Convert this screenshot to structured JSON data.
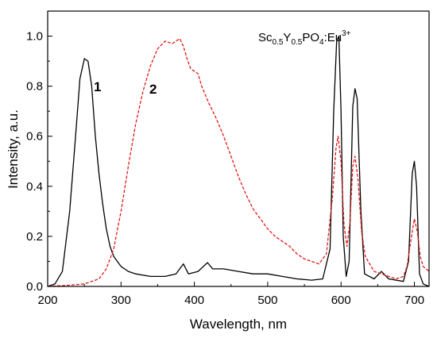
{
  "chart_data": {
    "type": "line",
    "xlabel": "Wavelength, nm",
    "ylabel": "Intensity, a.u.",
    "xlim": [
      200,
      720
    ],
    "ylim": [
      0,
      1.1
    ],
    "x_ticks": [
      "200",
      "300",
      "400",
      "500",
      "600",
      "700"
    ],
    "y_ticks": [
      "0.0",
      "0.2",
      "0.4",
      "0.6",
      "0.8",
      "1.0"
    ],
    "grid": false,
    "legend": "none",
    "annotation": {
      "base": "Sc",
      "s1": "0.5",
      "mid": "Y",
      "s2": "0.5",
      "tail": "PO",
      "s3": "4",
      "end": ":Eu",
      "sup": "3+"
    },
    "series": [
      {
        "label": "1",
        "color": "#000000",
        "style": "solid",
        "points": [
          [
            200,
            0.0
          ],
          [
            210,
            0.01
          ],
          [
            220,
            0.06
          ],
          [
            230,
            0.3
          ],
          [
            238,
            0.6
          ],
          [
            244,
            0.83
          ],
          [
            250,
            0.91
          ],
          [
            255,
            0.9
          ],
          [
            260,
            0.8
          ],
          [
            265,
            0.6
          ],
          [
            270,
            0.45
          ],
          [
            275,
            0.33
          ],
          [
            280,
            0.23
          ],
          [
            285,
            0.16
          ],
          [
            290,
            0.12
          ],
          [
            300,
            0.08
          ],
          [
            310,
            0.06
          ],
          [
            320,
            0.05
          ],
          [
            340,
            0.04
          ],
          [
            360,
            0.04
          ],
          [
            375,
            0.05
          ],
          [
            385,
            0.09
          ],
          [
            392,
            0.05
          ],
          [
            405,
            0.06
          ],
          [
            418,
            0.095
          ],
          [
            425,
            0.07
          ],
          [
            440,
            0.07
          ],
          [
            460,
            0.06
          ],
          [
            480,
            0.05
          ],
          [
            500,
            0.05
          ],
          [
            520,
            0.04
          ],
          [
            540,
            0.03
          ],
          [
            560,
            0.025
          ],
          [
            575,
            0.03
          ],
          [
            585,
            0.15
          ],
          [
            590,
            0.7
          ],
          [
            594,
            0.98
          ],
          [
            597,
            1.0
          ],
          [
            600,
            0.7
          ],
          [
            603,
            0.2
          ],
          [
            607,
            0.04
          ],
          [
            611,
            0.1
          ],
          [
            616,
            0.72
          ],
          [
            619,
            0.79
          ],
          [
            622,
            0.75
          ],
          [
            627,
            0.3
          ],
          [
            632,
            0.05
          ],
          [
            645,
            0.03
          ],
          [
            655,
            0.06
          ],
          [
            665,
            0.03
          ],
          [
            685,
            0.02
          ],
          [
            692,
            0.1
          ],
          [
            697,
            0.45
          ],
          [
            700,
            0.5
          ],
          [
            703,
            0.4
          ],
          [
            707,
            0.05
          ],
          [
            712,
            0.01
          ],
          [
            720,
            0.0
          ]
        ]
      },
      {
        "label": "2",
        "color": "#e31a1c",
        "style": "dashed",
        "points": [
          [
            200,
            0.0
          ],
          [
            230,
            0.005
          ],
          [
            250,
            0.01
          ],
          [
            270,
            0.03
          ],
          [
            280,
            0.07
          ],
          [
            290,
            0.15
          ],
          [
            300,
            0.3
          ],
          [
            310,
            0.48
          ],
          [
            320,
            0.65
          ],
          [
            330,
            0.78
          ],
          [
            340,
            0.88
          ],
          [
            350,
            0.95
          ],
          [
            360,
            0.98
          ],
          [
            370,
            0.97
          ],
          [
            380,
            0.99
          ],
          [
            385,
            0.96
          ],
          [
            390,
            0.91
          ],
          [
            395,
            0.87
          ],
          [
            400,
            0.86
          ],
          [
            405,
            0.85
          ],
          [
            410,
            0.8
          ],
          [
            420,
            0.73
          ],
          [
            430,
            0.67
          ],
          [
            440,
            0.6
          ],
          [
            450,
            0.52
          ],
          [
            460,
            0.44
          ],
          [
            470,
            0.37
          ],
          [
            480,
            0.31
          ],
          [
            490,
            0.27
          ],
          [
            500,
            0.23
          ],
          [
            510,
            0.2
          ],
          [
            520,
            0.18
          ],
          [
            530,
            0.16
          ],
          [
            540,
            0.13
          ],
          [
            550,
            0.11
          ],
          [
            560,
            0.1
          ],
          [
            570,
            0.09
          ],
          [
            580,
            0.13
          ],
          [
            588,
            0.35
          ],
          [
            593,
            0.55
          ],
          [
            596,
            0.6
          ],
          [
            600,
            0.5
          ],
          [
            604,
            0.25
          ],
          [
            608,
            0.16
          ],
          [
            612,
            0.25
          ],
          [
            616,
            0.48
          ],
          [
            619,
            0.52
          ],
          [
            623,
            0.43
          ],
          [
            628,
            0.22
          ],
          [
            633,
            0.12
          ],
          [
            645,
            0.06
          ],
          [
            655,
            0.05
          ],
          [
            665,
            0.04
          ],
          [
            675,
            0.03
          ],
          [
            685,
            0.04
          ],
          [
            690,
            0.08
          ],
          [
            695,
            0.18
          ],
          [
            700,
            0.27
          ],
          [
            704,
            0.22
          ],
          [
            708,
            0.12
          ],
          [
            712,
            0.08
          ],
          [
            720,
            0.06
          ]
        ]
      }
    ]
  }
}
